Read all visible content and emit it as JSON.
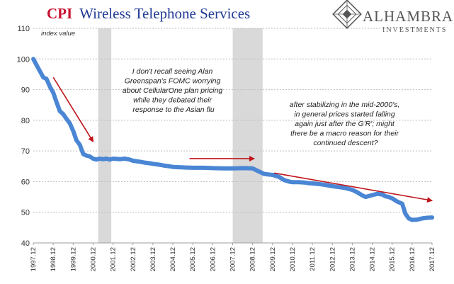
{
  "title": {
    "prefix": "CPI",
    "rest": "Wireless Telephone Services"
  },
  "logo": {
    "name": "ALHAMBRA",
    "sub": "INVESTMENTS"
  },
  "colors": {
    "line": "#4a86d4",
    "arrow": "#c0151b",
    "recession": "#d9d9d9",
    "title_red": "#c8102e",
    "title_blue": "#1f3a93"
  },
  "chart_data": {
    "type": "line",
    "ylabel": "index value",
    "ylim": [
      40,
      110
    ],
    "yticks": [
      40,
      50,
      60,
      70,
      80,
      90,
      100,
      110
    ],
    "grid": true,
    "xlim": [
      1997.917,
      2017.917
    ],
    "x_tick_labels": [
      "1997.12",
      "1998.12",
      "1999.12",
      "2000.12",
      "2001.12",
      "2002.12",
      "2003.12",
      "2004.12",
      "2005.12",
      "2006.12",
      "2007.12",
      "2008.12",
      "2009.12",
      "2010.12",
      "2011.12",
      "2012.12",
      "2013.12",
      "2014.12",
      "2015.12",
      "2016.12",
      "2017.12"
    ],
    "recession_bands": [
      [
        2001.17,
        2001.83
      ],
      [
        2007.92,
        2009.42
      ]
    ],
    "series": [
      {
        "x": [
          1997.92,
          1998.08,
          1998.25,
          1998.42,
          1998.58,
          1998.75,
          1998.92,
          1999.08,
          1999.25,
          1999.42,
          1999.58,
          1999.75,
          1999.92,
          2000.08,
          2000.25,
          2000.42,
          2000.58,
          2000.75,
          2000.92,
          2001.08,
          2001.25,
          2001.42,
          2001.58,
          2001.75,
          2001.92,
          2002.25,
          2002.5,
          2002.75,
          2002.92,
          2003.25,
          2003.5,
          2003.75,
          2003.92,
          2004.25,
          2004.5,
          2004.75,
          2004.92,
          2005.5,
          2005.92,
          2006.5,
          2006.92,
          2007.5,
          2007.92,
          2008.5,
          2008.92,
          2009.17,
          2009.33,
          2009.5,
          2009.75,
          2009.92,
          2010.25,
          2010.5,
          2010.75,
          2010.92,
          2011.25,
          2011.5,
          2011.75,
          2011.92,
          2012.25,
          2012.5,
          2012.75,
          2012.92,
          2013.25,
          2013.5,
          2013.75,
          2013.92,
          2014.17,
          2014.42,
          2014.58,
          2014.75,
          2014.92,
          2015.17,
          2015.42,
          2015.58,
          2015.75,
          2015.92,
          2016.17,
          2016.42,
          2016.58,
          2016.75,
          2016.92,
          2017.17,
          2017.42,
          2017.67,
          2017.92
        ],
        "values": [
          100,
          98,
          96,
          94,
          93.5,
          91,
          89,
          86,
          83,
          82,
          80.5,
          79,
          76.5,
          73.5,
          72,
          69,
          68.5,
          68.2,
          67.5,
          67.2,
          67.5,
          67.3,
          67.5,
          67.2,
          67.5,
          67.3,
          67.5,
          67.2,
          66.8,
          66.5,
          66.2,
          66,
          65.8,
          65.5,
          65.2,
          65,
          64.8,
          64.6,
          64.5,
          64.5,
          64.4,
          64.3,
          64.3,
          64.4,
          64.3,
          63.5,
          63,
          62.5,
          62.3,
          62.2,
          61.5,
          60.5,
          60,
          59.8,
          59.8,
          59.7,
          59.5,
          59.4,
          59.2,
          59,
          58.7,
          58.5,
          58.2,
          58,
          57.6,
          57.3,
          56.5,
          55.5,
          55,
          55.3,
          55.6,
          56,
          55.8,
          55.2,
          55,
          54.5,
          53.5,
          52.8,
          49.5,
          48,
          47.5,
          47.6,
          48,
          48.2,
          48.3
        ]
      }
    ],
    "annotations": [
      {
        "lines": [
          "I don't recall seeing Alan",
          "Greenspan's FOMC worrying",
          "about CellularOne plan pricing",
          "while they debated their",
          "response to the Asian flu"
        ]
      },
      {
        "lines": [
          "after stabilizing in the mid-2000's,",
          "in general prices started falling",
          "again just after the G'R'; might",
          "there be a macro reason for their",
          "continued descent?"
        ]
      }
    ],
    "arrows": [
      {
        "from": [
          1998.92,
          94
        ],
        "to": [
          2000.92,
          73
        ]
      },
      {
        "from": [
          2005.75,
          67.5
        ],
        "to": [
          2009.0,
          67.5
        ]
      },
      {
        "from": [
          2010.0,
          62.8
        ],
        "to": [
          2017.92,
          53.8
        ]
      }
    ]
  }
}
